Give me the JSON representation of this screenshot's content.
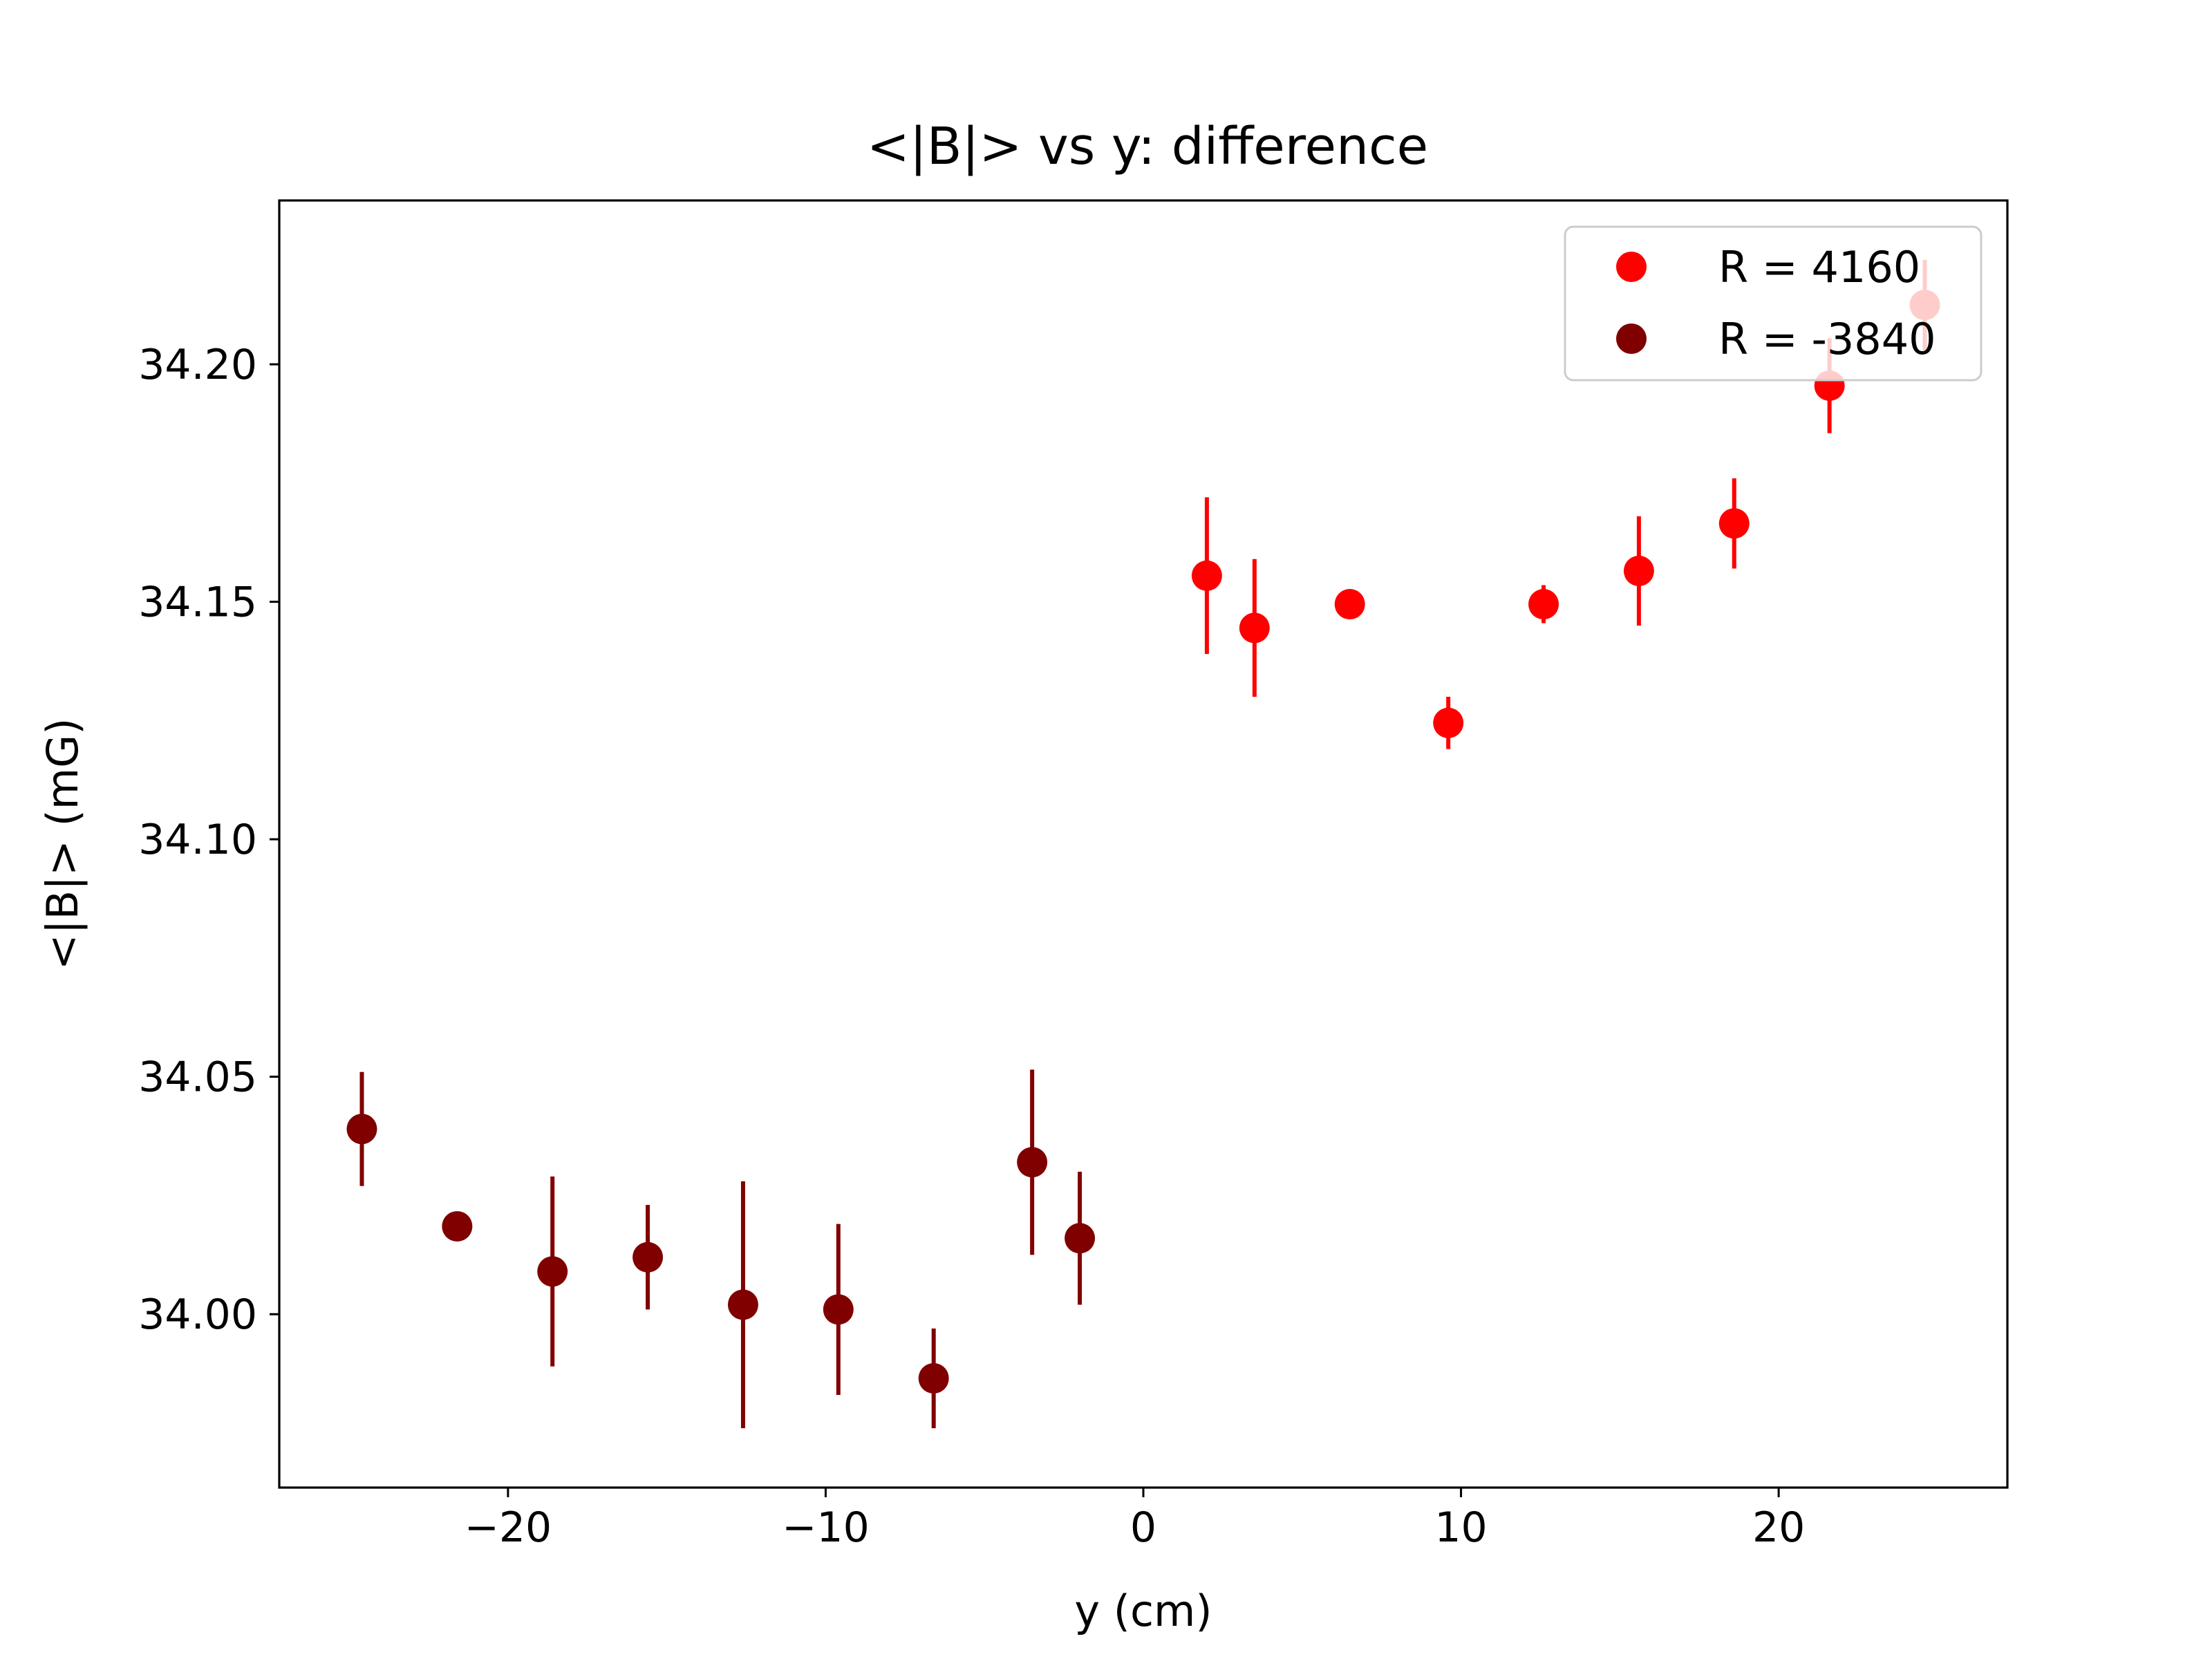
{
  "chart_data": {
    "type": "scatter",
    "title": "<|B|> vs y: difference",
    "xlabel": "y (cm)",
    "ylabel": "<|B|> (mG)",
    "xlim": [
      -27.2,
      27.2
    ],
    "ylim": [
      33.9635,
      34.2345
    ],
    "xticks": [
      -20,
      -10,
      0,
      10,
      20
    ],
    "xtick_labels": [
      "−20",
      "−10",
      "0",
      "10",
      "20"
    ],
    "yticks": [
      34.0,
      34.05,
      34.1,
      34.15,
      34.2
    ],
    "ytick_labels": [
      "34.00",
      "34.05",
      "34.10",
      "34.15",
      "34.20"
    ],
    "grid": false,
    "legend": {
      "placement": "top-right"
    },
    "series": [
      {
        "name": "R = 4160",
        "color": "#ff0000",
        "points": [
          {
            "x": 2.0,
            "y": 34.1555,
            "err": 0.0165
          },
          {
            "x": 3.5,
            "y": 34.1445,
            "err": 0.0145
          },
          {
            "x": 6.5,
            "y": 34.1495,
            "err": 0.001
          },
          {
            "x": 9.6,
            "y": 34.1245,
            "err": 0.0055
          },
          {
            "x": 12.6,
            "y": 34.1495,
            "err": 0.004
          },
          {
            "x": 15.6,
            "y": 34.1565,
            "err": 0.0115
          },
          {
            "x": 18.6,
            "y": 34.1665,
            "err": 0.0095
          },
          {
            "x": 21.6,
            "y": 34.1955,
            "err": 0.01
          },
          {
            "x": 24.6,
            "y": 34.2125,
            "err": 0.0095
          }
        ]
      },
      {
        "name": "R = -3840",
        "color": "#800000",
        "points": [
          {
            "x": -24.6,
            "y": 34.039,
            "err": 0.012
          },
          {
            "x": -21.6,
            "y": 34.0185,
            "err": 0.001
          },
          {
            "x": -18.6,
            "y": 34.009,
            "err": 0.02
          },
          {
            "x": -15.6,
            "y": 34.012,
            "err": 0.011
          },
          {
            "x": -12.6,
            "y": 34.002,
            "err": 0.026
          },
          {
            "x": -9.6,
            "y": 34.001,
            "err": 0.018
          },
          {
            "x": -6.6,
            "y": 33.9865,
            "err": 0.0105
          },
          {
            "x": -3.5,
            "y": 34.032,
            "err": 0.0195
          },
          {
            "x": -2.0,
            "y": 34.016,
            "err": 0.014
          }
        ]
      }
    ]
  }
}
